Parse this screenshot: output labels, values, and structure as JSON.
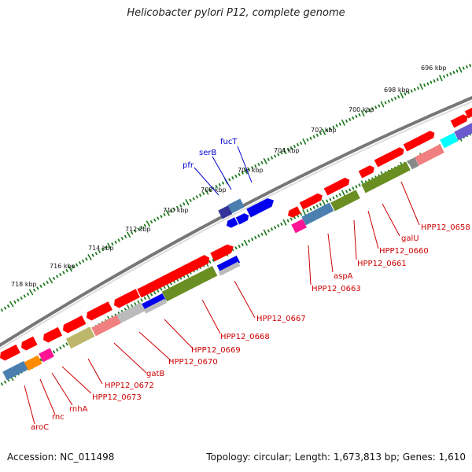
{
  "title": "Helicobacter pylori P12, complete genome",
  "accession": "Accession: NC_011498",
  "summary": "Topology: circular; Length: 1,673,813 bp; Genes: 1,610",
  "ticks": [
    {
      "label": "696 kbp"
    },
    {
      "label": "698 kbp"
    },
    {
      "label": "700 kbp"
    },
    {
      "label": "702 kbp"
    },
    {
      "label": "704 kbp"
    },
    {
      "label": "706 kbp"
    },
    {
      "label": "708 kbp"
    },
    {
      "label": "710 kbp"
    },
    {
      "label": "712 kbp"
    },
    {
      "label": "714 kbp"
    },
    {
      "label": "716 kbp"
    },
    {
      "label": "718 kbp"
    }
  ],
  "forward_labels": [
    {
      "label": "fucT"
    },
    {
      "label": "serB"
    },
    {
      "label": "pfr"
    }
  ],
  "reverse_labels": [
    {
      "label": "HPP12_0658"
    },
    {
      "label": "galU"
    },
    {
      "label": "HPP12_0660"
    },
    {
      "label": "HPP12_0661"
    },
    {
      "label": "aspA"
    },
    {
      "label": "HPP12_0663"
    },
    {
      "label": "HPP12_0667"
    },
    {
      "label": "HPP12_0668"
    },
    {
      "label": "HPP12_0669"
    },
    {
      "label": "HPP12_0670"
    },
    {
      "label": "gatB"
    },
    {
      "label": "HPP12_0672"
    },
    {
      "label": "HPP12_0673"
    },
    {
      "label": "rnhA"
    },
    {
      "label": "rnc"
    },
    {
      "label": "aroC"
    }
  ],
  "colors": {
    "cds_red": "#ff0000",
    "cds_blue": "#0000ee",
    "cds_dark_blue": "#333399",
    "cds_steel": "#4a7fb0",
    "cds_olive": "#6b8e23",
    "cds_khaki": "#bdb76b",
    "cds_pink": "#f08080",
    "cds_gray": "#bbbbbb",
    "cds_magenta": "#ff1493",
    "cds_orange": "#ff8c00",
    "cds_cyan": "#00ffff",
    "cds_purple": "#6a5acd",
    "backbone": "#888888",
    "tick_green": "#1e7a1e",
    "label_red": "#cc0000",
    "label_blue": "#0000cc"
  },
  "icons": [
    "forward-strand-arrow",
    "reverse-strand-arrow"
  ]
}
